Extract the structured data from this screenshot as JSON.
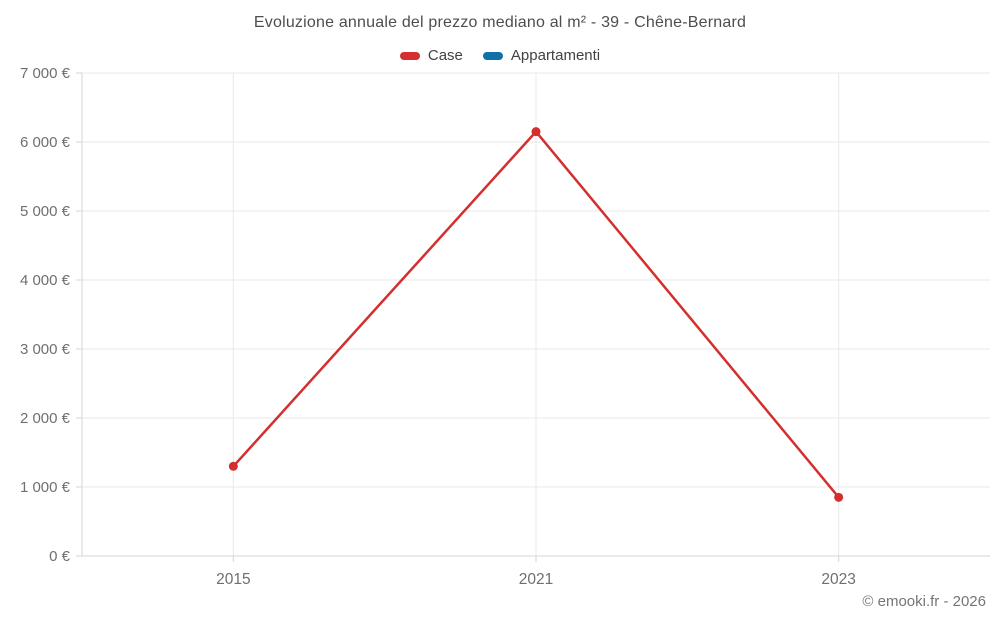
{
  "title": "Evoluzione annuale del prezzo mediano al m² - 39 - Chêne-Bernard",
  "footer": "© emooki.fr - 2026",
  "colors": {
    "case_red": "#d32f2f",
    "appartamenti_blue": "#1270a8",
    "gridline": "#e8e8e8",
    "axis_line": "#d6d6d6",
    "tick_text": "#6f6f71",
    "title_text": "#4e4e50"
  },
  "chart_data": {
    "type": "line",
    "categories": [
      "2015",
      "2021",
      "2023"
    ],
    "series": [
      {
        "name": "Case",
        "color": "#d32f2f",
        "values": [
          1300,
          6150,
          850
        ]
      },
      {
        "name": "Appartamenti",
        "color": "#1270a8",
        "values": []
      }
    ],
    "title": "Evoluzione annuale del prezzo mediano al m² - 39 - Chêne-Bernard",
    "xlabel": "",
    "ylabel": "",
    "ylim": [
      0,
      7000
    ],
    "ytick_step": 1000,
    "ytick_labels": [
      "0 €",
      "1 000 €",
      "2 000 €",
      "3 000 €",
      "4 000 €",
      "5 000 €",
      "6 000 €",
      "7 000 €"
    ],
    "grid": true,
    "legend_position": "top"
  }
}
